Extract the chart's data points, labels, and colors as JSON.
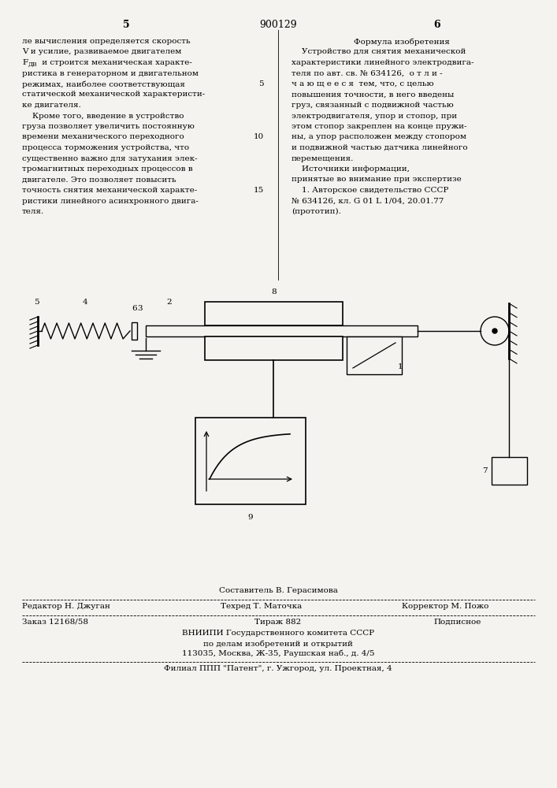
{
  "bg_color": "#f5f3ef",
  "page_width": 7.07,
  "page_height": 10.0,
  "header_number": "900129",
  "col_left_page": "5",
  "col_right_page": "6",
  "col_left_text": [
    "ле вычисления определяется скорость",
    "V и усилие, развиваемое двигателем",
    "FDV и строится механическая характе-",
    "ристика в генераторном и двигательном",
    "режимах, наиболее соответствующая",
    "статической механической характеристи-",
    "ке двигателя.",
    "    Кроме того, введение в устройство",
    "груза позволяет увеличить постоянную",
    "времени механического переходного",
    "процесса торможения устройства, что",
    "существенно важно для затухания элек-",
    "тромагнитных переходных процессов в",
    "двигателе. Это позволяет повысить",
    "точность снятия механической характе-",
    "ристики линейного асинхронного двига-",
    "теля."
  ],
  "col_right_header": "Формула изобретения",
  "col_right_text": [
    "    Устройство для снятия механической",
    "характеристики линейного электродвига-",
    "теля по авт. св. № 634126,  о т л и -",
    "ч а ю щ е е с я  тем, что, с целью",
    "повышения точности, в него введены",
    "груз, связанный с подвижной частью",
    "электродвигателя, упор и стопор, при",
    "этом стопор закреплен на конце пружи-",
    "ны, а упор расположен между стопором",
    "и подвижной частью датчика линейного",
    "перемещения.",
    "    Источники информации,",
    "принятые во внимание при экспертизе",
    "    1. Авторское свидетельство СССР",
    "№ 634126, кл. G 01 L 1/04, 20.01.77",
    "(прототип)."
  ],
  "line_nums_left": {
    "4": "5",
    "9": "10",
    "14": "15"
  },
  "footer_composer": "Составитель В. Герасимова",
  "footer_editor": "Редактор Н. Джуган",
  "footer_tech": "Техред Т. Маточка",
  "footer_corrector": "Корректор М. Пожо",
  "footer_order": "Заказ 12168/58",
  "footer_print": "Тираж 882",
  "footer_type": "Подписное",
  "footer_org": "ВНИИПИ Государственного комитета СССР",
  "footer_affairs": "по делам изобретений и открытий",
  "footer_address": "113035, Москва, Ж-35, Раушская наб., д. 4/5",
  "footer_branch": "Филиал ППП \"Патент\", г. Ужгород, ул. Проектная, 4"
}
